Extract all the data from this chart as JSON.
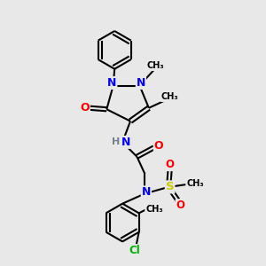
{
  "bg_color": "#e8e8e8",
  "atom_colors": {
    "N": "#0000ff",
    "O": "#ff0000",
    "S": "#cccc00",
    "Cl": "#00b000",
    "C": "#000000",
    "H": "#708090"
  },
  "bond_color": "#000000",
  "bond_width": 1.5,
  "figsize": [
    3.0,
    3.0
  ],
  "dpi": 100,
  "xlim": [
    0,
    10
  ],
  "ylim": [
    0,
    10
  ]
}
